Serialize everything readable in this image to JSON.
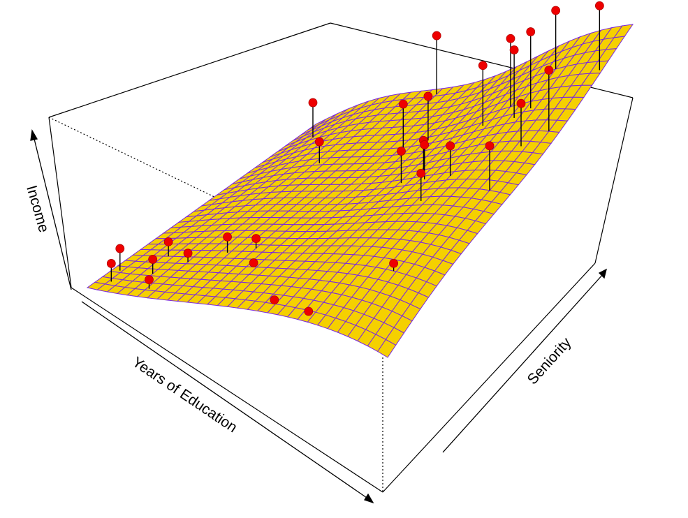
{
  "chart_data": {
    "type": "surface",
    "title": "",
    "axes": {
      "x": {
        "label": "Years of Education",
        "range": [
          10,
          22
        ]
      },
      "y": {
        "label": "Seniority",
        "range": [
          0,
          200
        ]
      },
      "z": {
        "label": "Income",
        "range": [
          0,
          100
        ]
      }
    },
    "surface_style": {
      "fill": "#f5d000",
      "grid_line": "#7a28e0",
      "grid_n": 30
    },
    "point_color": "#ee0000",
    "points": [
      {
        "education": 10.5,
        "seniority": 10,
        "income": 13
      },
      {
        "education": 10.3,
        "seniority": 22,
        "income": 16
      },
      {
        "education": 11.6,
        "seniority": 22,
        "income": 13
      },
      {
        "education": 12.1,
        "seniority": 8,
        "income": 9
      },
      {
        "education": 11.4,
        "seniority": 40,
        "income": 14
      },
      {
        "education": 12.4,
        "seniority": 35,
        "income": 12
      },
      {
        "education": 13.5,
        "seniority": 45,
        "income": 20
      },
      {
        "education": 14.4,
        "seniority": 50,
        "income": 18
      },
      {
        "education": 15.0,
        "seniority": 35,
        "income": 13
      },
      {
        "education": 17.0,
        "seniority": 10,
        "income": 12
      },
      {
        "education": 18.6,
        "seniority": 5,
        "income": 14
      },
      {
        "education": 11.2,
        "seniority": 170,
        "income": 35
      },
      {
        "education": 13.0,
        "seniority": 135,
        "income": 28
      },
      {
        "education": 14.8,
        "seniority": 195,
        "income": 60
      },
      {
        "education": 16.0,
        "seniority": 140,
        "income": 50
      },
      {
        "education": 16.5,
        "seniority": 150,
        "income": 48
      },
      {
        "education": 17.3,
        "seniority": 110,
        "income": 40
      },
      {
        "education": 17.7,
        "seniority": 120,
        "income": 40
      },
      {
        "education": 18.2,
        "seniority": 110,
        "income": 45
      },
      {
        "education": 19.0,
        "seniority": 90,
        "income": 42
      },
      {
        "education": 19.2,
        "seniority": 110,
        "income": 45
      },
      {
        "education": 20.3,
        "seniority": 40,
        "income": 24
      },
      {
        "education": 18.6,
        "seniority": 150,
        "income": 68
      },
      {
        "education": 19.2,
        "seniority": 160,
        "income": 78
      },
      {
        "education": 19.8,
        "seniority": 150,
        "income": 78
      },
      {
        "education": 20.2,
        "seniority": 155,
        "income": 86
      },
      {
        "education": 20.0,
        "seniority": 180,
        "income": 80
      },
      {
        "education": 21.2,
        "seniority": 100,
        "income": 55
      },
      {
        "education": 21.0,
        "seniority": 130,
        "income": 58
      },
      {
        "education": 21.6,
        "seniority": 140,
        "income": 72
      },
      {
        "education": 21.9,
        "seniority": 175,
        "income": 85
      }
    ]
  }
}
